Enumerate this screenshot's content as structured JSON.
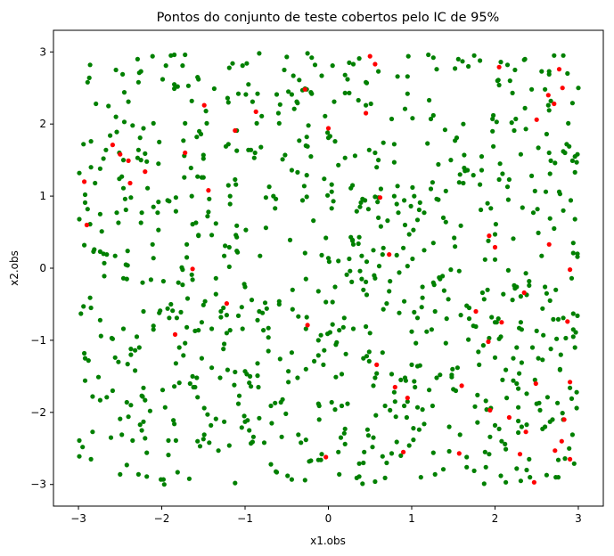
{
  "chart_data": {
    "type": "scatter",
    "title": "Pontos do conjunto de teste cobertos pelo IC de 95%",
    "xlabel": "x1.obs",
    "ylabel": "x2.obs",
    "xlim": [
      -3.3,
      3.3
    ],
    "ylim": [
      -3.3,
      3.3
    ],
    "xticks": [
      -3,
      -2,
      -1,
      0,
      1,
      2,
      3
    ],
    "yticks": [
      -3,
      -2,
      -1,
      0,
      1,
      2,
      3
    ],
    "xtick_labels": [
      "−3",
      "−2",
      "−1",
      "0",
      "1",
      "2",
      "3"
    ],
    "ytick_labels": [
      "−3",
      "−2",
      "−1",
      "0",
      "1",
      "2",
      "3"
    ],
    "grid": false,
    "legend": "none",
    "series": [
      {
        "color": "#008000",
        "count": 900,
        "x": [],
        "y": []
      },
      {
        "color": "#ff0000",
        "x": [
          0.5,
          0.56,
          2.05,
          2.64,
          2.77,
          2.81,
          2.71,
          2.5,
          0.45,
          -0.28,
          0.0,
          -1.49,
          -0.87,
          -1.12,
          -2.5,
          -2.59,
          -2.4,
          -2.2,
          -2.93,
          -1.72,
          -1.44,
          -2.38,
          -2.9,
          0.62,
          1.93,
          2.0,
          2.65,
          2.9,
          0.73,
          -1.63,
          -1.22,
          -0.25,
          0.58,
          0.8,
          0.95,
          1.6,
          1.77,
          1.92,
          2.08,
          2.35,
          2.49,
          2.87,
          2.9,
          -1.84,
          0.9,
          1.94,
          2.17,
          2.37,
          2.47,
          2.83,
          2.72,
          2.9,
          -0.03,
          1.57,
          2.3,
          2.8
        ],
        "y": [
          2.94,
          2.83,
          2.79,
          2.4,
          2.76,
          2.5,
          2.28,
          2.06,
          2.15,
          2.48,
          1.94,
          2.26,
          2.17,
          1.91,
          1.58,
          1.71,
          1.49,
          1.34,
          1.2,
          1.6,
          1.08,
          1.18,
          0.6,
          0.98,
          0.45,
          0.29,
          0.33,
          -0.02,
          0.19,
          -0.01,
          -0.49,
          -0.79,
          -1.34,
          -1.65,
          -1.8,
          -1.63,
          -0.6,
          -1.02,
          -0.75,
          -0.34,
          -1.6,
          -0.74,
          -1.58,
          -0.92,
          -2.55,
          -1.97,
          -2.07,
          -2.27,
          -2.97,
          -2.1,
          -2.53,
          -2.65,
          -2.62,
          -2.57,
          -2.58,
          -2.4
        ]
      }
    ]
  }
}
